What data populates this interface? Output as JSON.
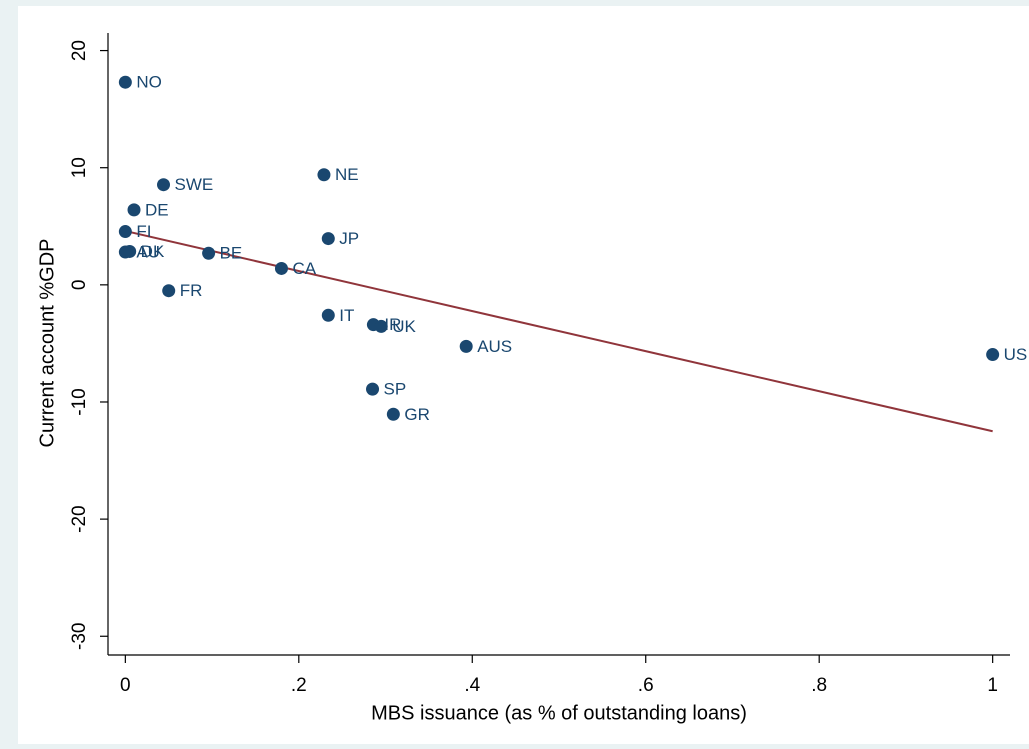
{
  "chart_data": {
    "type": "scatter",
    "x_label": "MBS issuance (as % of outstanding loans)",
    "y_label": "Current account %GDP",
    "labels": [
      "NO",
      "SWE",
      "DE",
      "FI",
      "AU",
      "DK",
      "BE",
      "CA",
      "FR",
      "NE",
      "JP",
      "IT",
      "IR",
      "UK",
      "AUS",
      "SP",
      "GR",
      "US"
    ],
    "x": [
      0,
      0.044,
      0.01,
      0,
      0,
      0.005,
      0.096,
      0.18,
      0.05,
      0.229,
      0.234,
      0.234,
      0.286,
      0.295,
      0.393,
      0.285,
      0.309,
      1.0
    ],
    "values": [
      17.3,
      8.55,
      6.4,
      4.55,
      2.8,
      2.85,
      2.7,
      1.4,
      -0.5,
      9.4,
      3.95,
      -2.6,
      -3.4,
      -3.55,
      -5.25,
      -8.9,
      -11.05,
      -5.95
    ],
    "color": "#1a476f",
    "fit_line": {
      "x": [
        0,
        1
      ],
      "values": [
        4.6,
        -12.5
      ],
      "color": "#90353b"
    },
    "xlim": [
      -0.02,
      1.02
    ],
    "ylim": [
      -31.6,
      21.5
    ],
    "xticks": [
      0,
      {
        "value": 0.2,
        "label": ".2"
      },
      {
        "value": 0.4,
        "label": ".4"
      },
      {
        "value": 0.6,
        "label": ".6"
      },
      {
        "value": 0.8,
        "label": ".8"
      },
      1
    ],
    "yticks": [
      -30,
      -20,
      -10,
      0,
      10,
      20
    ],
    "grid": true
  }
}
